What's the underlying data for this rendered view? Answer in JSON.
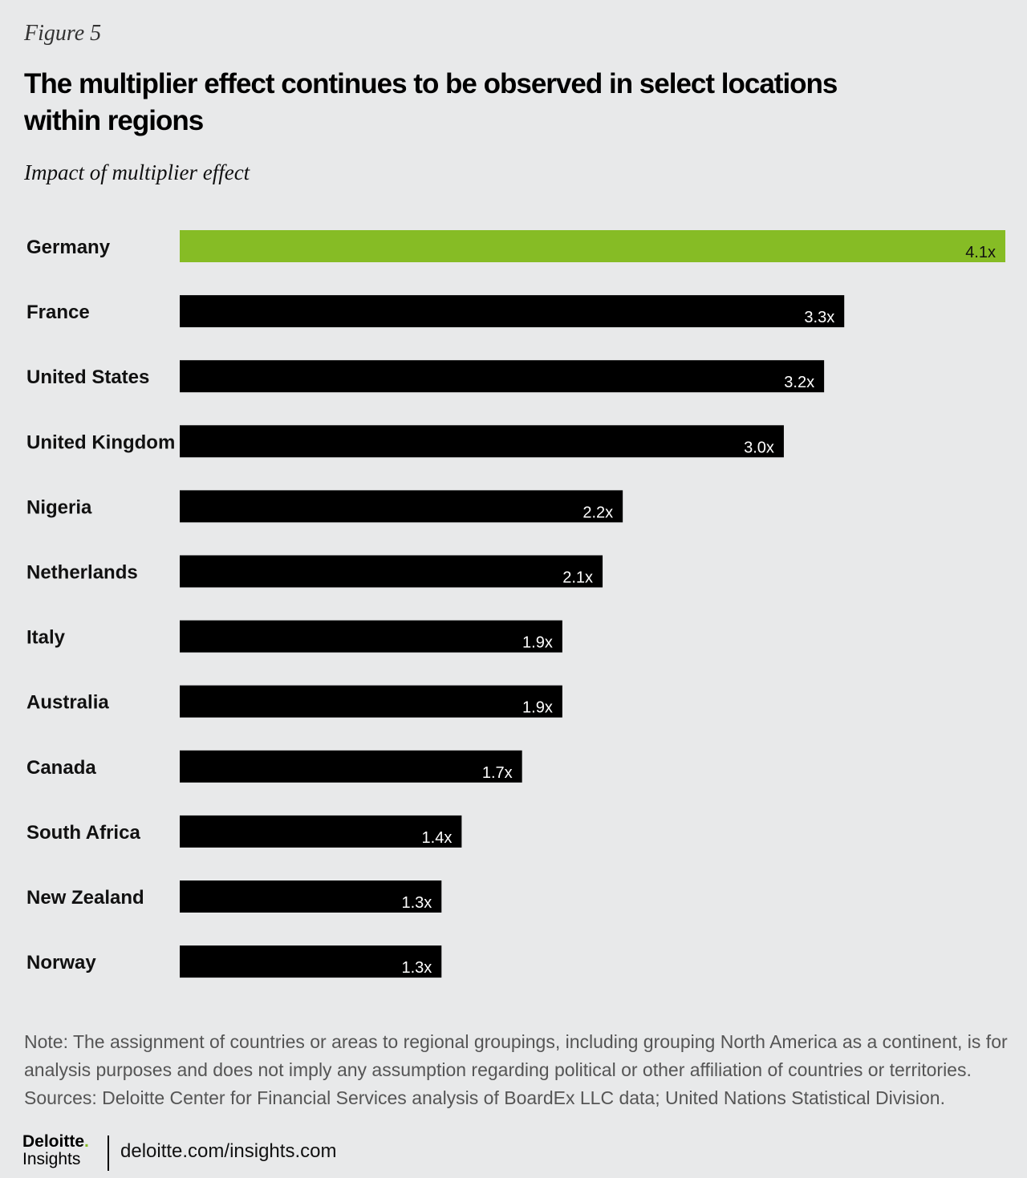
{
  "figure_label": "Figure 5",
  "title": "The multiplier effect continues to be observed in select locations within regions",
  "subtitle": "Impact of multiplier effect",
  "chart_data": {
    "type": "bar",
    "orientation": "horizontal",
    "categories": [
      "Germany",
      "France",
      "United States",
      "United Kingdom",
      "Nigeria",
      "Netherlands",
      "Italy",
      "Australia",
      "Canada",
      "South Africa",
      "New Zealand",
      "Norway"
    ],
    "values": [
      4.1,
      3.3,
      3.2,
      3.0,
      2.2,
      2.1,
      1.9,
      1.9,
      1.7,
      1.4,
      1.3,
      1.3
    ],
    "data_labels": [
      "4.1x",
      "3.3x",
      "3.2x",
      "3.0x",
      "2.2x",
      "2.1x",
      "1.9x",
      "1.9x",
      "1.7x",
      "1.4x",
      "1.3x",
      "1.3x"
    ],
    "highlight_index": 0,
    "colors": {
      "highlight": "#86bc25",
      "default": "#000000"
    },
    "xlim": [
      0,
      4.1
    ],
    "grid": false,
    "legend": "none"
  },
  "notes": {
    "note_line1": "Note:  The assignment of countries or areas to regional groupings, including grouping North America as a continent, is for",
    "note_line2": "analysis purposes and does not imply any assumption regarding political or other affiliation of countries or territories.",
    "sources": "Sources: Deloitte Center for Financial Services analysis of BoardEx LLC data; United Nations Statistical Division."
  },
  "footer": {
    "logo_name": "Deloitte",
    "logo_dot": ".",
    "logo_sub": "Insights",
    "url": "deloitte.com/insights.com"
  }
}
